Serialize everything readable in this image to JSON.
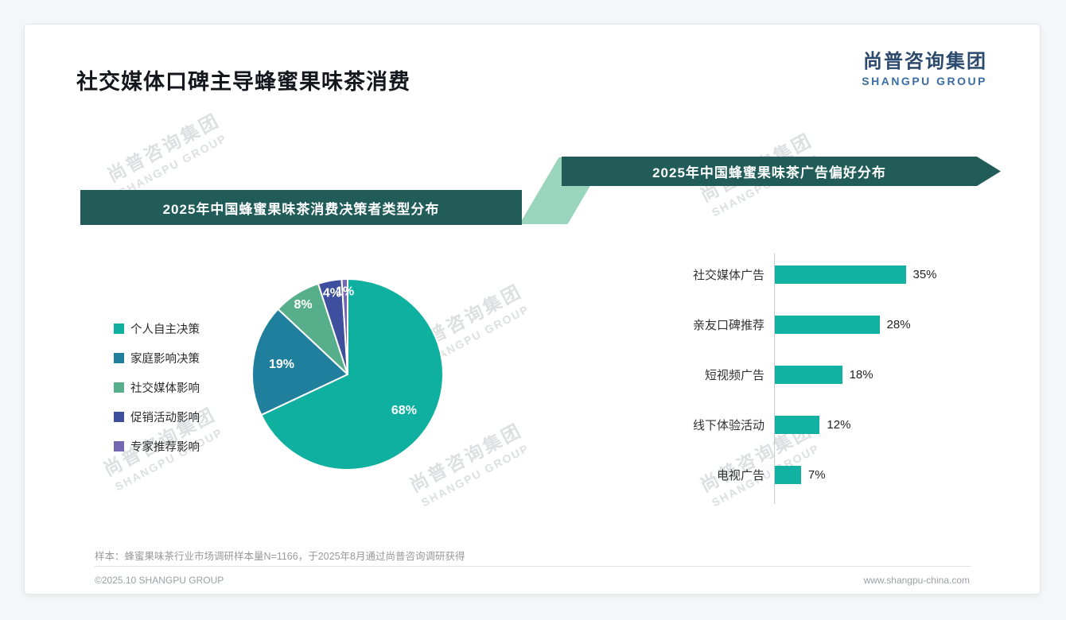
{
  "page": {
    "title": "社交媒体口碑主导蜂蜜果味茶消费",
    "logo": {
      "cn": "尚普咨询集团",
      "en": "SHANGPU GROUP"
    },
    "watermark": {
      "cn": "尚普咨询集团",
      "en": "SHANGPU GROUP"
    },
    "footer": {
      "note": "样本：蜂蜜果味茶行业市场调研样本量N=1166，于2025年8月通过尚普咨询调研获得",
      "copyright": "©2025.10 SHANGPU GROUP",
      "website": "www.shangpu-china.com"
    }
  },
  "colors": {
    "banner_teal": "#215c58",
    "connector_green": "#99d5bd",
    "accent_teal": "#12b1a1",
    "logo_cn": "#2c4a6e",
    "logo_en": "#3a6da3"
  },
  "chart_data": [
    {
      "type": "pie",
      "title": "2025年中国蜂蜜果味茶消费决策者类型分布",
      "labels": [
        "个人自主决策",
        "家庭影响决策",
        "社交媒体影响",
        "促销活动影响",
        "专家推荐影响"
      ],
      "values": [
        68,
        19,
        8,
        4,
        1
      ],
      "data_labels": [
        "68%",
        "19%",
        "8%",
        "4%",
        "1%"
      ],
      "colors": [
        "#10b0a0",
        "#1f7f9c",
        "#56ae8a",
        "#3d4f9d",
        "#7267b0"
      ],
      "legend_position": "left"
    },
    {
      "type": "bar",
      "orientation": "horizontal",
      "title": "2025年中国蜂蜜果味茶广告偏好分布",
      "categories": [
        "社交媒体广告",
        "亲友口碑推荐",
        "短视频广告",
        "线下体验活动",
        "电视广告"
      ],
      "values": [
        35,
        28,
        18,
        12,
        7
      ],
      "data_labels": [
        "35%",
        "28%",
        "18%",
        "12%",
        "7%"
      ],
      "bar_color": "#12b1a1",
      "xlim": [
        0,
        40
      ]
    }
  ]
}
